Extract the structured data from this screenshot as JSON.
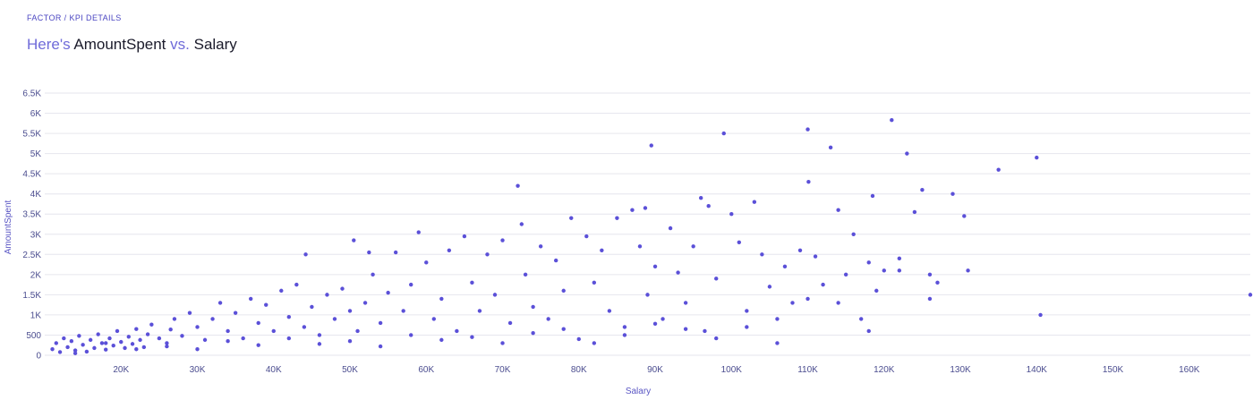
{
  "header": {
    "breadcrumb": "FACTOR / KPI DETAILS",
    "title_prefix": "Here's",
    "title_x": "AmountSpent",
    "title_vs": "vs.",
    "title_y": "Salary"
  },
  "colors": {
    "point": "#5b50d8",
    "grid": "#e6e6ee",
    "text": "#4b4d8f"
  },
  "chart_data": {
    "type": "scatter",
    "xlabel": "Salary",
    "ylabel": "AmountSpent",
    "xlim": [
      10000,
      168000
    ],
    "ylim": [
      0,
      6500
    ],
    "grid": true,
    "x_ticks": [
      20000,
      30000,
      40000,
      50000,
      60000,
      70000,
      80000,
      90000,
      100000,
      110000,
      120000,
      130000,
      140000,
      150000,
      160000
    ],
    "x_tick_labels": [
      "20K",
      "30K",
      "40K",
      "50K",
      "60K",
      "70K",
      "80K",
      "90K",
      "100K",
      "110K",
      "120K",
      "130K",
      "140K",
      "150K",
      "160K"
    ],
    "y_ticks": [
      0,
      500,
      1000,
      1500,
      2000,
      2500,
      3000,
      3500,
      4000,
      4500,
      5000,
      5500,
      6000,
      6500
    ],
    "y_tick_labels": [
      "0",
      "500",
      "1K",
      "1.5K",
      "2K",
      "2.5K",
      "3K",
      "3.5K",
      "4K",
      "4.5K",
      "5K",
      "5.5K",
      "6K",
      "6.5K"
    ],
    "points": [
      [
        11000,
        150
      ],
      [
        11500,
        300
      ],
      [
        12000,
        80
      ],
      [
        12500,
        420
      ],
      [
        13000,
        200
      ],
      [
        13500,
        350
      ],
      [
        14000,
        120
      ],
      [
        14500,
        480
      ],
      [
        15000,
        260
      ],
      [
        15500,
        90
      ],
      [
        16000,
        380
      ],
      [
        16500,
        180
      ],
      [
        17000,
        520
      ],
      [
        17500,
        300
      ],
      [
        18000,
        140
      ],
      [
        18500,
        420
      ],
      [
        19000,
        240
      ],
      [
        19500,
        600
      ],
      [
        20000,
        330
      ],
      [
        20500,
        180
      ],
      [
        21000,
        460
      ],
      [
        21500,
        280
      ],
      [
        22000,
        650
      ],
      [
        22500,
        380
      ],
      [
        23000,
        200
      ],
      [
        23500,
        520
      ],
      [
        24000,
        760
      ],
      [
        25000,
        420
      ],
      [
        26000,
        300
      ],
      [
        26500,
        640
      ],
      [
        27000,
        900
      ],
      [
        28000,
        480
      ],
      [
        29000,
        1050
      ],
      [
        30000,
        700
      ],
      [
        31000,
        380
      ],
      [
        32000,
        900
      ],
      [
        33000,
        1300
      ],
      [
        34000,
        600
      ],
      [
        35000,
        1050
      ],
      [
        36000,
        420
      ],
      [
        37000,
        1400
      ],
      [
        38000,
        800
      ],
      [
        39000,
        1250
      ],
      [
        40000,
        600
      ],
      [
        41000,
        1600
      ],
      [
        42000,
        950
      ],
      [
        43000,
        1750
      ],
      [
        44000,
        700
      ],
      [
        44200,
        2500
      ],
      [
        45000,
        1200
      ],
      [
        46000,
        500
      ],
      [
        47000,
        1500
      ],
      [
        48000,
        900
      ],
      [
        49000,
        1650
      ],
      [
        50000,
        1100
      ],
      [
        50500,
        2850
      ],
      [
        51000,
        600
      ],
      [
        52000,
        1300
      ],
      [
        52500,
        2550
      ],
      [
        53000,
        2000
      ],
      [
        54000,
        800
      ],
      [
        55000,
        1550
      ],
      [
        56000,
        2550
      ],
      [
        57000,
        1100
      ],
      [
        58000,
        1750
      ],
      [
        59000,
        3050
      ],
      [
        60000,
        2300
      ],
      [
        61000,
        900
      ],
      [
        62000,
        1400
      ],
      [
        63000,
        2600
      ],
      [
        64000,
        600
      ],
      [
        65000,
        2950
      ],
      [
        66000,
        1800
      ],
      [
        67000,
        1100
      ],
      [
        68000,
        2500
      ],
      [
        69000,
        1500
      ],
      [
        70000,
        2850
      ],
      [
        71000,
        800
      ],
      [
        72000,
        4200
      ],
      [
        72500,
        3250
      ],
      [
        73000,
        2000
      ],
      [
        74000,
        1200
      ],
      [
        75000,
        2700
      ],
      [
        76000,
        900
      ],
      [
        77000,
        2350
      ],
      [
        78000,
        1600
      ],
      [
        79000,
        3400
      ],
      [
        80000,
        400
      ],
      [
        81000,
        2950
      ],
      [
        82000,
        1800
      ],
      [
        83000,
        2600
      ],
      [
        84000,
        1100
      ],
      [
        85000,
        3400
      ],
      [
        86000,
        700
      ],
      [
        87000,
        3600
      ],
      [
        88000,
        2700
      ],
      [
        88700,
        3650
      ],
      [
        89000,
        1500
      ],
      [
        89500,
        5200
      ],
      [
        90000,
        2200
      ],
      [
        91000,
        900
      ],
      [
        92000,
        3150
      ],
      [
        93000,
        2050
      ],
      [
        94000,
        1300
      ],
      [
        95000,
        2700
      ],
      [
        96000,
        3900
      ],
      [
        96500,
        600
      ],
      [
        97000,
        3700
      ],
      [
        98000,
        1900
      ],
      [
        99000,
        5500
      ],
      [
        100000,
        3500
      ],
      [
        101000,
        2800
      ],
      [
        102000,
        1100
      ],
      [
        103000,
        3800
      ],
      [
        104000,
        2500
      ],
      [
        105000,
        1700
      ],
      [
        106000,
        300
      ],
      [
        107000,
        2200
      ],
      [
        108000,
        1300
      ],
      [
        109000,
        2600
      ],
      [
        110000,
        5600
      ],
      [
        110100,
        4300
      ],
      [
        111000,
        2450
      ],
      [
        112000,
        1750
      ],
      [
        113000,
        5150
      ],
      [
        114000,
        3600
      ],
      [
        115000,
        2000
      ],
      [
        116000,
        3000
      ],
      [
        117000,
        900
      ],
      [
        118000,
        2300
      ],
      [
        118500,
        3950
      ],
      [
        119000,
        1600
      ],
      [
        120000,
        2100
      ],
      [
        121000,
        5830
      ],
      [
        122000,
        2400
      ],
      [
        123000,
        5000
      ],
      [
        124000,
        3550
      ],
      [
        125000,
        4100
      ],
      [
        126000,
        2000
      ],
      [
        127000,
        1800
      ],
      [
        129000,
        4000
      ],
      [
        130500,
        3450
      ],
      [
        131000,
        2100
      ],
      [
        135000,
        4600
      ],
      [
        140000,
        4900
      ],
      [
        140500,
        1000
      ],
      [
        168000,
        1500
      ],
      [
        14000,
        50
      ],
      [
        18000,
        300
      ],
      [
        22000,
        150
      ],
      [
        26000,
        220
      ],
      [
        30000,
        150
      ],
      [
        34000,
        350
      ],
      [
        38000,
        250
      ],
      [
        42000,
        420
      ],
      [
        46000,
        280
      ],
      [
        50000,
        350
      ],
      [
        54000,
        220
      ],
      [
        58000,
        500
      ],
      [
        62000,
        380
      ],
      [
        66000,
        450
      ],
      [
        70000,
        300
      ],
      [
        74000,
        550
      ],
      [
        78000,
        650
      ],
      [
        82000,
        300
      ],
      [
        86000,
        500
      ],
      [
        90000,
        780
      ],
      [
        94000,
        650
      ],
      [
        98000,
        420
      ],
      [
        102000,
        700
      ],
      [
        106000,
        900
      ],
      [
        110000,
        1400
      ],
      [
        114000,
        1300
      ],
      [
        118000,
        600
      ],
      [
        122000,
        2100
      ],
      [
        126000,
        1400
      ]
    ]
  }
}
